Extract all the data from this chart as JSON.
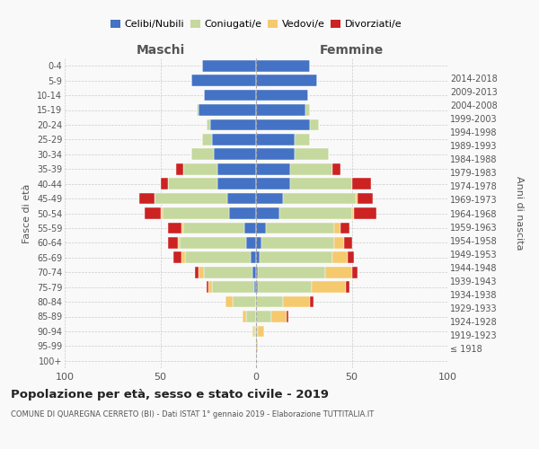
{
  "age_groups": [
    "100+",
    "95-99",
    "90-94",
    "85-89",
    "80-84",
    "75-79",
    "70-74",
    "65-69",
    "60-64",
    "55-59",
    "50-54",
    "45-49",
    "40-44",
    "35-39",
    "30-34",
    "25-29",
    "20-24",
    "15-19",
    "10-14",
    "5-9",
    "0-4"
  ],
  "birth_years": [
    "≤ 1918",
    "1919-1923",
    "1924-1928",
    "1929-1933",
    "1934-1938",
    "1939-1943",
    "1944-1948",
    "1949-1953",
    "1954-1958",
    "1959-1963",
    "1964-1968",
    "1969-1973",
    "1974-1978",
    "1979-1983",
    "1984-1988",
    "1989-1993",
    "1994-1998",
    "1999-2003",
    "2004-2008",
    "2009-2013",
    "2014-2018"
  ],
  "colors": {
    "celibe": "#4472c4",
    "coniugato": "#c5d89e",
    "vedovo": "#f5c96e",
    "divorziato": "#cc2222"
  },
  "maschi": {
    "celibe": [
      0,
      0,
      0,
      0,
      0,
      1,
      2,
      3,
      5,
      6,
      14,
      15,
      20,
      20,
      22,
      23,
      24,
      30,
      27,
      34,
      28
    ],
    "coniugato": [
      0,
      0,
      1,
      5,
      12,
      22,
      25,
      34,
      35,
      32,
      35,
      38,
      26,
      18,
      12,
      5,
      2,
      1,
      0,
      0,
      0
    ],
    "vedovo": [
      0,
      0,
      1,
      2,
      4,
      2,
      3,
      2,
      1,
      1,
      1,
      0,
      0,
      0,
      0,
      0,
      0,
      0,
      0,
      0,
      0
    ],
    "divorziato": [
      0,
      0,
      0,
      0,
      0,
      1,
      2,
      4,
      5,
      7,
      8,
      8,
      4,
      4,
      0,
      0,
      0,
      0,
      0,
      0,
      0
    ]
  },
  "femmine": {
    "nubile": [
      0,
      0,
      0,
      0,
      0,
      1,
      1,
      2,
      3,
      5,
      12,
      14,
      18,
      18,
      20,
      20,
      28,
      26,
      27,
      32,
      28
    ],
    "coniugata": [
      0,
      0,
      1,
      8,
      14,
      28,
      35,
      38,
      38,
      36,
      38,
      38,
      32,
      22,
      18,
      8,
      5,
      2,
      0,
      0,
      0
    ],
    "vedova": [
      0,
      1,
      3,
      8,
      14,
      18,
      14,
      8,
      5,
      3,
      1,
      1,
      0,
      0,
      0,
      0,
      0,
      0,
      0,
      0,
      0
    ],
    "divorziata": [
      0,
      0,
      0,
      1,
      2,
      2,
      3,
      3,
      4,
      5,
      12,
      8,
      10,
      4,
      0,
      0,
      0,
      0,
      0,
      0,
      0
    ]
  },
  "xlim": 100,
  "title": "Popolazione per età, sesso e stato civile - 2019",
  "subtitle": "COMUNE DI QUAREGNA CERRETO (BI) - Dati ISTAT 1° gennaio 2019 - Elaborazione TUTTITALIA.IT",
  "ylabel_left": "Fasce di età",
  "ylabel_right": "Anni di nascita",
  "xlabel_maschi": "Maschi",
  "xlabel_femmine": "Femmine",
  "bg_color": "#f9f9f9",
  "grid_color": "#cccccc"
}
